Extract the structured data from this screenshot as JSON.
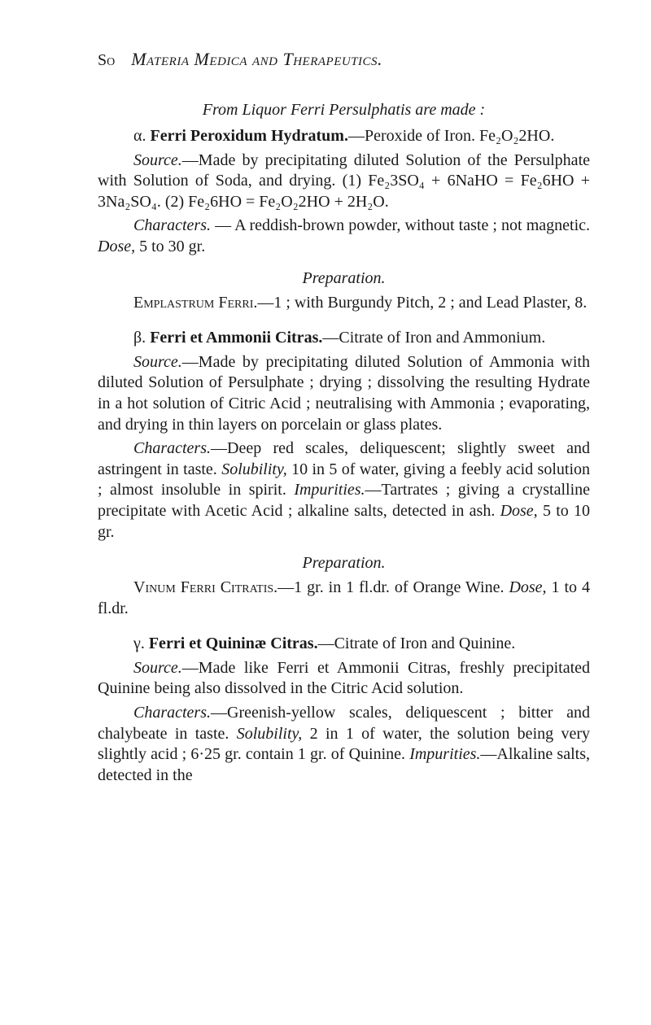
{
  "header": {
    "page_number": "So",
    "running_title": "Materia Medica and Therapeutics."
  },
  "s1": {
    "made_from": "From Liquor Ferri Persulphatis are made :",
    "alpha_label": "α. ",
    "alpha_bold": "Ferri Peroxidum Hydratum.",
    "alpha_tail": "—Peroxide of Iron. Fe₂O₂2HO.",
    "source_it": "Source.",
    "source_txt": "—Made by precipitating diluted Solution of the Persulphate with Solution of Soda, and drying. (1) Fe₂3SO₄ + 6NaHO = Fe₂6HO + 3Na₂SO₄. (2) Fe₂6HO = Fe₂O₂2HO + 2H₂O.",
    "chars_it": "Characters.",
    "chars_txt": " — A reddish-brown powder, without taste ; not magnetic. ",
    "dose_it": "Dose,",
    "dose_txt": " 5 to 30 gr.",
    "prep": "Preparation.",
    "empl_sc": "Emplastrum Ferri.",
    "empl_txt": "—1 ; with Burgundy Pitch, 2 ; and Lead Plaster, 8."
  },
  "s2": {
    "beta_label": "β. ",
    "beta_bold": "Ferri et Ammonii Citras.",
    "beta_tail": "—Citrate of Iron and Ammonium.",
    "source_it": "Source.",
    "source_txt": "—Made by precipitating diluted Solution of Ammonia with diluted Solution of Persulphate ; drying ; dissolving the resulting Hydrate in a hot solution of Citric Acid ; neutralising with Ammonia ; evaporating, and drying in thin layers on porcelain or glass plates.",
    "chars_it": "Characters.",
    "chars_txt": "—Deep red scales, deliquescent; slightly sweet and astringent in taste. ",
    "solu_it": "Solubility,",
    "solu_txt": " 10 in 5 of water, giving a feebly acid solution ; almost insoluble in spirit. ",
    "impu_it": "Impurities.",
    "impu_txt": "—Tartrates ; giving a crystalline precipitate with Acetic Acid ; alkaline salts, detected in ash. ",
    "dose_it": "Dose,",
    "dose_txt": " 5 to 10 gr.",
    "prep": "Preparation.",
    "vin_sc": "Vinum Ferri Citratis.",
    "vin_txt": "—1 gr. in 1 fl.dr. of Orange Wine. ",
    "vin_dose_it": "Dose,",
    "vin_dose_txt": " 1 to 4 fl.dr."
  },
  "s3": {
    "gamma_label": "γ. ",
    "gamma_bold": "Ferri et Quininæ Citras.",
    "gamma_tail": "—Citrate of Iron and Quinine.",
    "source_it": "Source.",
    "source_txt": "—Made like Ferri et Ammonii Citras, freshly precipitated Quinine being also dissolved in the Citric Acid solution.",
    "chars_it": "Characters.",
    "chars_txt": "—Greenish-yellow scales, deliquescent ; bitter and chalybeate in taste. ",
    "solu_it": "Solubility,",
    "solu_txt": " 2 in 1 of water, the solution being very slightly acid ; 6·25 gr. contain 1 gr. of Quinine. ",
    "impu_it": "Impurities.",
    "impu_txt": "—Alkaline salts, detected in the"
  }
}
